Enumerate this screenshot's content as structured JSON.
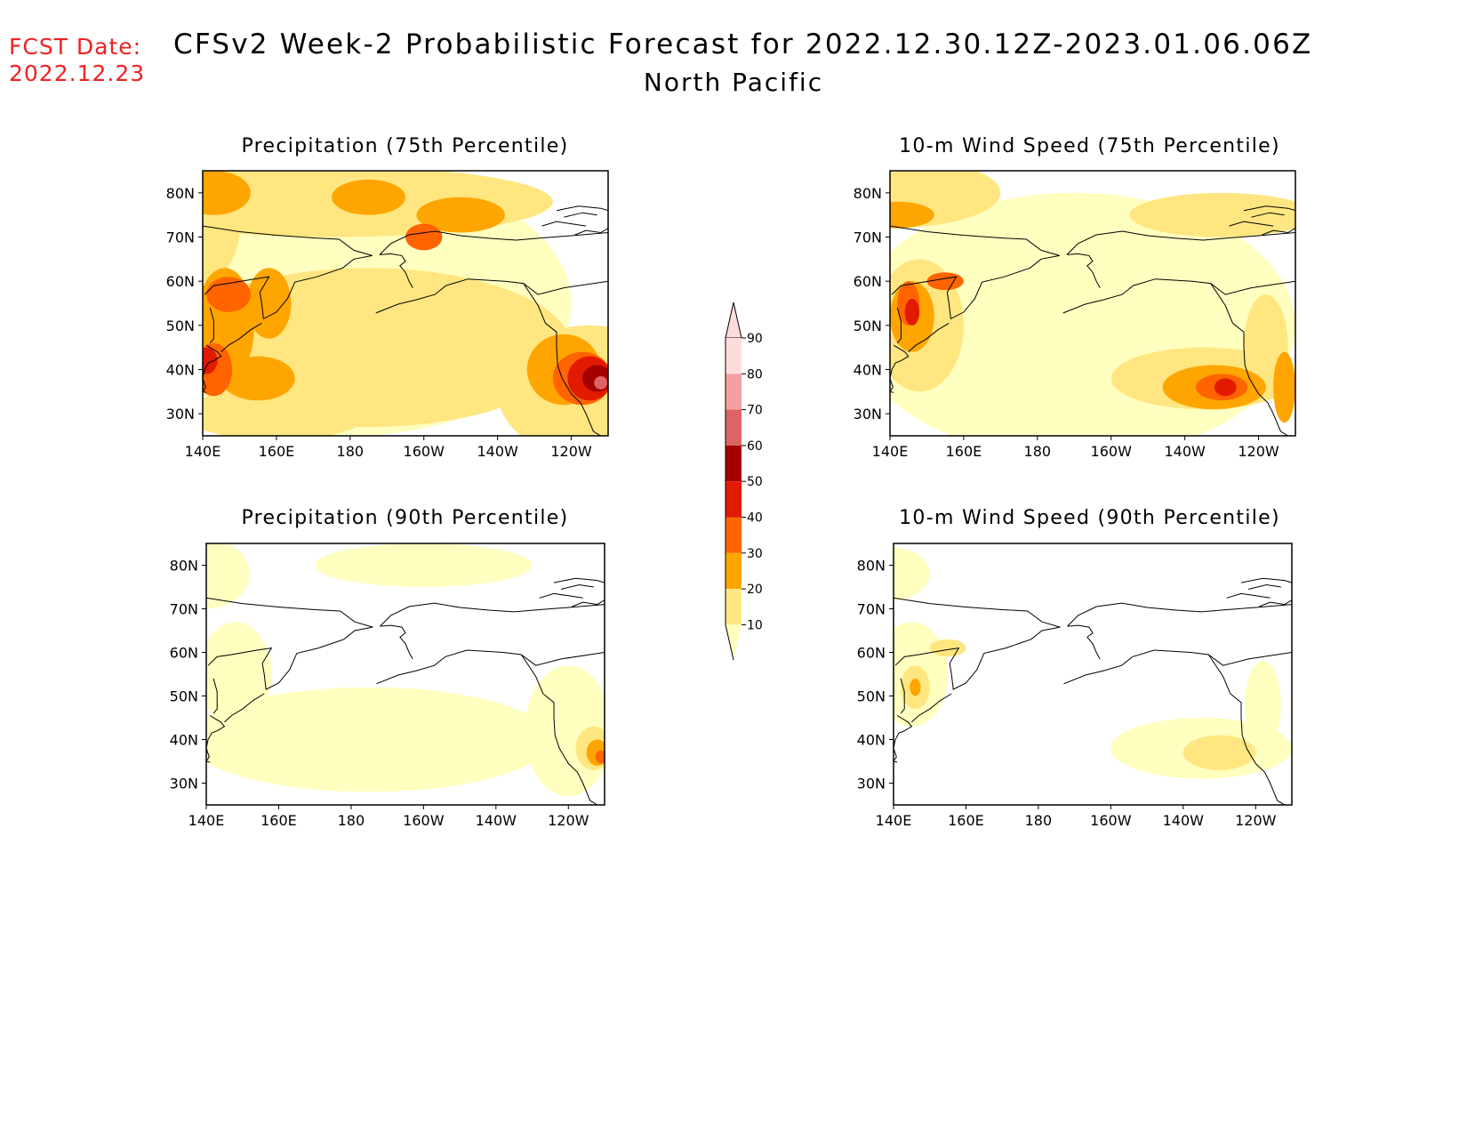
{
  "fcst": {
    "label": "FCST Date:",
    "date": "2022.12.23"
  },
  "title": "CFSv2 Week-2 Probabilistic Forecast for 2022.12.30.12Z-2023.01.06.06Z",
  "subtitle": "North Pacific",
  "colors": {
    "10": "#ffffc0",
    "20": "#ffe680",
    "30": "#ffa500",
    "40": "#ff6400",
    "50": "#e11a00",
    "60": "#a50000",
    "70": "#dd6464",
    "80": "#f4a0a0",
    "90": "#ffdcdc"
  },
  "colorbar": {
    "levels": [
      10,
      20,
      30,
      40,
      50,
      60,
      70,
      80,
      90
    ]
  },
  "axes": {
    "x_ticks": [
      "140E",
      "160E",
      "180",
      "160W",
      "140W",
      "120W"
    ],
    "y_ticks": [
      "30N",
      "40N",
      "50N",
      "60N",
      "70N",
      "80N"
    ]
  },
  "panels": [
    {
      "id": "precip75",
      "title": "Precipitation (75th Percentile)",
      "field": [
        {
          "level": 10,
          "blobs": [
            [
              180,
              55,
              60,
              30
            ]
          ]
        },
        {
          "level": 20,
          "blobs": [
            [
              140,
              72,
              10,
              12
            ],
            [
              175,
              78,
              60,
              8
            ],
            [
              185,
              45,
              55,
              18
            ],
            [
              160,
              30,
              25,
              6
            ],
            [
              245,
              35,
              25,
              15
            ]
          ]
        },
        {
          "level": 30,
          "blobs": [
            [
              143,
              80,
              10,
              5
            ],
            [
              185,
              79,
              10,
              4
            ],
            [
              210,
              75,
              12,
              4
            ],
            [
              146,
              50,
              8,
              13
            ],
            [
              158,
              55,
              6,
              8
            ],
            [
              155,
              38,
              10,
              5
            ],
            [
              238,
              40,
              10,
              8
            ]
          ]
        },
        {
          "level": 40,
          "blobs": [
            [
              147,
              57,
              6,
              4
            ],
            [
              143,
              40,
              5,
              6
            ],
            [
              200,
              70,
              5,
              3
            ],
            [
              243,
              38,
              8,
              6
            ]
          ]
        },
        {
          "level": 50,
          "blobs": [
            [
              141,
              42,
              3,
              3
            ],
            [
              245,
              38,
              6,
              5
            ]
          ]
        },
        {
          "level": 60,
          "blobs": [
            [
              247,
              38,
              4,
              3
            ]
          ]
        },
        {
          "level": 70,
          "blobs": [
            [
              248,
              37,
              1.8,
              1.5
            ]
          ]
        }
      ]
    },
    {
      "id": "wind75",
      "title": "10-m Wind Speed (75th Percentile)",
      "field": [
        {
          "level": 10,
          "blobs": [
            [
              190,
              50,
              60,
              30
            ]
          ]
        },
        {
          "level": 20,
          "blobs": [
            [
              140,
              80,
              30,
              8
            ],
            [
              230,
              75,
              25,
              5
            ],
            [
              148,
              50,
              12,
              15
            ],
            [
              225,
              38,
              25,
              7
            ],
            [
              242,
              45,
              6,
              12
            ]
          ]
        },
        {
          "level": 30,
          "blobs": [
            [
              142,
              75,
              10,
              3
            ],
            [
              146,
              52,
              6,
              8
            ],
            [
              228,
              36,
              14,
              5
            ],
            [
              247,
              36,
              3,
              8
            ]
          ]
        },
        {
          "level": 40,
          "blobs": [
            [
              145,
              55,
              3,
              5
            ],
            [
              230,
              36,
              7,
              3
            ],
            [
              155,
              60,
              5,
              2
            ]
          ]
        },
        {
          "level": 50,
          "blobs": [
            [
              146,
              53,
              2,
              3
            ],
            [
              231,
              36,
              3,
              2
            ]
          ]
        }
      ]
    },
    {
      "id": "precip90",
      "title": "Precipitation (90th Percentile)",
      "field": [
        {
          "level": 10,
          "blobs": [
            [
              185,
              40,
              50,
              12
            ],
            [
              140,
              78,
              12,
              8
            ],
            [
              200,
              80,
              30,
              5
            ],
            [
              148,
              55,
              10,
              12
            ],
            [
              240,
              42,
              12,
              15
            ]
          ]
        },
        {
          "level": 20,
          "blobs": [
            [
              247,
              38,
              5,
              5
            ]
          ]
        },
        {
          "level": 30,
          "blobs": [
            [
              248,
              37,
              3,
              3
            ]
          ]
        },
        {
          "level": 40,
          "blobs": [
            [
              249,
              36,
              1.5,
              1.5
            ]
          ]
        }
      ]
    },
    {
      "id": "wind90",
      "title": "10-m Wind Speed (90th Percentile)",
      "field": [
        {
          "level": 10,
          "blobs": [
            [
              145,
              55,
              10,
              12
            ],
            [
              225,
              38,
              25,
              7
            ],
            [
              242,
              48,
              5,
              10
            ],
            [
              140,
              78,
              10,
              6
            ]
          ]
        },
        {
          "level": 20,
          "blobs": [
            [
              146,
              52,
              4,
              5
            ],
            [
              230,
              37,
              10,
              4
            ],
            [
              155,
              61,
              5,
              2
            ]
          ]
        },
        {
          "level": 30,
          "blobs": [
            [
              146,
              52,
              1.5,
              2
            ]
          ]
        }
      ]
    }
  ]
}
